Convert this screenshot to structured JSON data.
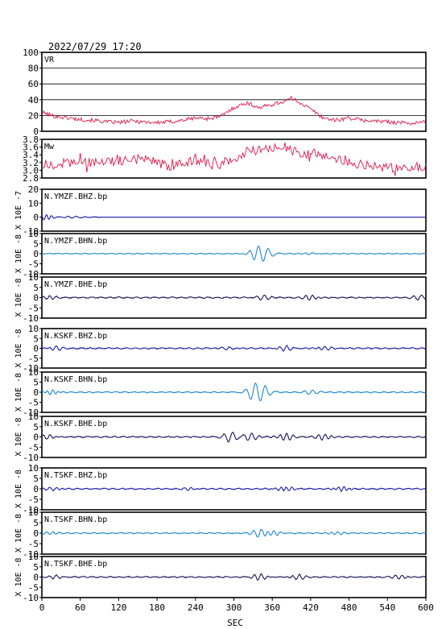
{
  "title": "2022/07/29 17:20",
  "xlabel": "SEC",
  "x_ticks": [
    "0",
    "60",
    "120",
    "180",
    "240",
    "300",
    "360",
    "420",
    "480",
    "540",
    "600"
  ],
  "chart_data": [
    {
      "type": "line",
      "label": "VR",
      "xlim": [
        0,
        600
      ],
      "ylim": [
        0,
        100
      ],
      "ytick_labels": [
        "100",
        "80",
        "60",
        "40",
        "20",
        "0"
      ],
      "grid": "horizontal",
      "color": "#e0194a",
      "series": [
        {
          "x": [
            0,
            20,
            40,
            60,
            80,
            100,
            120,
            140,
            160,
            180,
            200,
            220,
            240,
            260,
            280,
            300,
            320,
            340,
            360,
            380,
            390,
            400,
            420,
            440,
            460,
            480,
            500,
            520,
            540,
            560,
            580,
            600
          ],
          "y": [
            24,
            19,
            17,
            15,
            14,
            12,
            11,
            13,
            12,
            11,
            12,
            14,
            17,
            16,
            19,
            30,
            36,
            30,
            34,
            38,
            42,
            38,
            28,
            17,
            14,
            17,
            14,
            13,
            12,
            11,
            10,
            12
          ]
        }
      ]
    },
    {
      "type": "line",
      "label": "Mw",
      "xlim": [
        0,
        600
      ],
      "ylim": [
        2.8,
        3.8
      ],
      "ytick_labels": [
        "3.8",
        "3.6",
        "3.4",
        "3.2",
        "3.0",
        "2.8"
      ],
      "color": "#e0194a",
      "series": [
        {
          "x": [
            0,
            40,
            80,
            120,
            160,
            200,
            240,
            280,
            320,
            360,
            380,
            400,
            440,
            480,
            520,
            560,
            600
          ],
          "y": [
            3.1,
            3.2,
            3.2,
            3.25,
            3.3,
            3.1,
            3.25,
            3.1,
            3.5,
            3.55,
            3.6,
            3.45,
            3.4,
            3.2,
            3.1,
            3.05,
            3.1
          ]
        }
      ]
    },
    {
      "type": "line",
      "label": "N.YMZF.BHZ.bp",
      "scale": "X 10E -7",
      "xlim": [
        0,
        600
      ],
      "ylim": [
        -10,
        20
      ],
      "ytick_labels": [
        "20",
        "10",
        "0",
        "-10"
      ],
      "color": "#1a1aaa",
      "x_end": 90,
      "events": [
        [
          5,
          2.0,
          1.5
        ],
        [
          50,
          0.5,
          1.0
        ]
      ],
      "noise": 0.4
    },
    {
      "type": "line",
      "label": "N.YMZF.BHN.bp",
      "scale": "X 10E -8",
      "xlim": [
        0,
        600
      ],
      "ylim": [
        -10,
        10
      ],
      "ytick_labels": [
        "10",
        "5",
        "0",
        "-5",
        "-10"
      ],
      "color": "#1e88d0",
      "events": [
        [
          335,
          3.0,
          0.9
        ],
        [
          350,
          2.5,
          0.8
        ],
        [
          420,
          0.6,
          1.0
        ]
      ],
      "noise": 0.25
    },
    {
      "type": "line",
      "label": "N.YMZF.BHE.bp",
      "scale": "X 10E -8",
      "xlim": [
        0,
        600
      ],
      "ylim": [
        -10,
        10
      ],
      "ytick_labels": [
        "10",
        "5",
        "0",
        "-5",
        "-10"
      ],
      "color": "#14145a",
      "events": [
        [
          10,
          1.0,
          1.2
        ],
        [
          345,
          1.4,
          1.0
        ],
        [
          420,
          1.2,
          1.2
        ],
        [
          590,
          1.0,
          1.0
        ]
      ],
      "noise": 0.35
    },
    {
      "type": "line",
      "label": "N.KSKF.BHZ.bp",
      "scale": "X 10E -8",
      "xlim": [
        0,
        600
      ],
      "ylim": [
        -10,
        10
      ],
      "ytick_labels": [
        "10",
        "5",
        "0",
        "-5",
        "-10"
      ],
      "color": "#1a1aaa",
      "events": [
        [
          20,
          1.0,
          1.2
        ],
        [
          290,
          1.0,
          1.0
        ],
        [
          380,
          1.2,
          1.2
        ],
        [
          440,
          1.0,
          1.2
        ]
      ],
      "noise": 0.4
    },
    {
      "type": "line",
      "label": "N.KSKF.BHN.bp",
      "scale": "X 10E -8",
      "xlim": [
        0,
        600
      ],
      "ylim": [
        -10,
        10
      ],
      "ytick_labels": [
        "10",
        "5",
        "0",
        "-5",
        "-10"
      ],
      "color": "#1e88d0",
      "events": [
        [
          15,
          1.0,
          1.5
        ],
        [
          330,
          3.5,
          0.8
        ],
        [
          345,
          3.0,
          0.8
        ],
        [
          420,
          0.9,
          1.0
        ]
      ],
      "noise": 0.35
    },
    {
      "type": "line",
      "label": "N.KSKF.BHE.bp",
      "scale": "X 10E -8",
      "xlim": [
        0,
        600
      ],
      "ylim": [
        -10,
        10
      ],
      "ytick_labels": [
        "10",
        "5",
        "0",
        "-5",
        "-10"
      ],
      "color": "#14145a",
      "events": [
        [
          10,
          1.0,
          1.2
        ],
        [
          295,
          2.5,
          0.9
        ],
        [
          325,
          2.0,
          1.0
        ],
        [
          380,
          1.8,
          1.2
        ],
        [
          440,
          1.5,
          1.2
        ]
      ],
      "noise": 0.35
    },
    {
      "type": "line",
      "label": "N.TSKF.BHZ.bp",
      "scale": "X 10E -8",
      "xlim": [
        0,
        600
      ],
      "ylim": [
        -10,
        10
      ],
      "ytick_labels": [
        "10",
        "5",
        "0",
        "-5",
        "-10"
      ],
      "color": "#1a1aaa",
      "events": [
        [
          20,
          0.8,
          1.2
        ],
        [
          230,
          0.6,
          1.2
        ],
        [
          380,
          1.0,
          1.5
        ],
        [
          470,
          1.0,
          1.5
        ]
      ],
      "noise": 0.35
    },
    {
      "type": "line",
      "label": "N.TSKF.BHN.bp",
      "scale": "X 10E -8",
      "xlim": [
        0,
        600
      ],
      "ylim": [
        -10,
        10
      ],
      "ytick_labels": [
        "10",
        "5",
        "0",
        "-5",
        "-10"
      ],
      "color": "#1e88d0",
      "events": [
        [
          15,
          0.8,
          1.2
        ],
        [
          340,
          1.8,
          1.0
        ],
        [
          360,
          1.2,
          1.2
        ],
        [
          460,
          0.8,
          1.2
        ]
      ],
      "noise": 0.3
    },
    {
      "type": "line",
      "label": "N.TSKF.BHE.bp",
      "scale": "X 10E -8",
      "xlim": [
        0,
        600
      ],
      "ylim": [
        -10,
        10
      ],
      "ytick_labels": [
        "10",
        "5",
        "0",
        "-5",
        "-10"
      ],
      "color": "#14145a",
      "events": [
        [
          20,
          0.8,
          1.2
        ],
        [
          340,
          1.4,
          1.2
        ],
        [
          400,
          1.2,
          1.2
        ],
        [
          560,
          1.0,
          1.2
        ]
      ],
      "noise": 0.35
    }
  ]
}
